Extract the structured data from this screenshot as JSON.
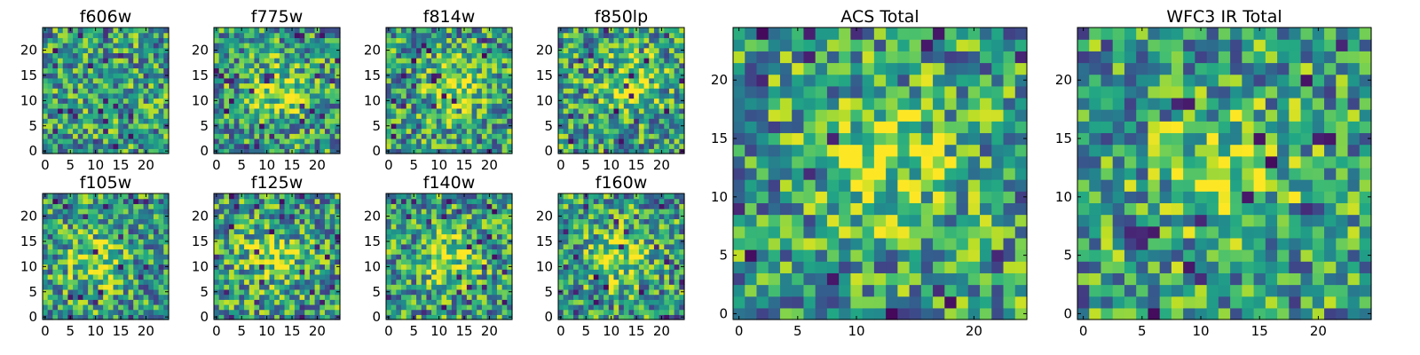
{
  "figure": {
    "panels": [
      {
        "title": "f606w"
      },
      {
        "title": "f775w"
      },
      {
        "title": "f814w"
      },
      {
        "title": "f850lp"
      },
      {
        "title": "f105w"
      },
      {
        "title": "f125w"
      },
      {
        "title": "f140w"
      },
      {
        "title": "f160w"
      },
      {
        "title": "ACS Total"
      },
      {
        "title": "WFC3 IR Total"
      }
    ]
  },
  "chart_data": [
    {
      "type": "heatmap",
      "title": "f606w",
      "grid_size": [
        25,
        25
      ],
      "xlim": [
        0,
        24
      ],
      "ylim": [
        0,
        24
      ],
      "xticks": [
        0,
        5,
        10,
        15,
        20
      ],
      "yticks": [
        0,
        5,
        10,
        15,
        20
      ],
      "colormap": "viridis",
      "blob": null,
      "seed": 11
    },
    {
      "type": "heatmap",
      "title": "f775w",
      "grid_size": [
        25,
        25
      ],
      "xlim": [
        0,
        24
      ],
      "ylim": [
        0,
        24
      ],
      "xticks": [
        0,
        5,
        10,
        15,
        20
      ],
      "yticks": [
        0,
        5,
        10,
        15,
        20
      ],
      "colormap": "viridis",
      "blob": [
        12,
        12
      ],
      "seed": 23
    },
    {
      "type": "heatmap",
      "title": "f814w",
      "grid_size": [
        25,
        25
      ],
      "xlim": [
        0,
        24
      ],
      "ylim": [
        0,
        24
      ],
      "xticks": [
        0,
        5,
        10,
        15,
        20
      ],
      "yticks": [
        0,
        5,
        10,
        15,
        20
      ],
      "colormap": "viridis",
      "blob": [
        13,
        13
      ],
      "seed": 37
    },
    {
      "type": "heatmap",
      "title": "f850lp",
      "grid_size": [
        25,
        25
      ],
      "xlim": [
        0,
        24
      ],
      "ylim": [
        0,
        24
      ],
      "xticks": [
        0,
        5,
        10,
        15,
        20
      ],
      "yticks": [
        0,
        5,
        10,
        15,
        20
      ],
      "colormap": "viridis",
      "blob": [
        14,
        14
      ],
      "seed": 41
    },
    {
      "type": "heatmap",
      "title": "f105w",
      "grid_size": [
        25,
        25
      ],
      "xlim": [
        0,
        24
      ],
      "ylim": [
        0,
        24
      ],
      "xticks": [
        0,
        5,
        10,
        15,
        20
      ],
      "yticks": [
        0,
        5,
        10,
        15,
        20
      ],
      "colormap": "viridis",
      "blob": [
        10,
        11
      ],
      "seed": 53
    },
    {
      "type": "heatmap",
      "title": "f125w",
      "grid_size": [
        25,
        25
      ],
      "xlim": [
        0,
        24
      ],
      "ylim": [
        0,
        24
      ],
      "xticks": [
        0,
        5,
        10,
        15,
        20
      ],
      "yticks": [
        0,
        5,
        10,
        15,
        20
      ],
      "colormap": "viridis",
      "blob": [
        11,
        12
      ],
      "seed": 67
    },
    {
      "type": "heatmap",
      "title": "f140w",
      "grid_size": [
        25,
        25
      ],
      "xlim": [
        0,
        24
      ],
      "ylim": [
        0,
        24
      ],
      "xticks": [
        0,
        5,
        10,
        15,
        20
      ],
      "yticks": [
        0,
        5,
        10,
        15,
        20
      ],
      "colormap": "viridis",
      "blob": [
        12,
        12
      ],
      "seed": 71
    },
    {
      "type": "heatmap",
      "title": "f160w",
      "grid_size": [
        25,
        25
      ],
      "xlim": [
        0,
        24
      ],
      "ylim": [
        0,
        24
      ],
      "xticks": [
        0,
        5,
        10,
        15,
        20
      ],
      "yticks": [
        0,
        5,
        10,
        15,
        20
      ],
      "colormap": "viridis",
      "blob": [
        12,
        12
      ],
      "seed": 83
    },
    {
      "type": "heatmap",
      "title": "ACS Total",
      "grid_size": [
        25,
        25
      ],
      "xlim": [
        0,
        24
      ],
      "ylim": [
        0,
        24
      ],
      "xticks": [
        0,
        5,
        10,
        20
      ],
      "yticks": [
        0,
        5,
        10,
        15,
        20
      ],
      "colormap": "viridis",
      "blob": [
        13,
        13
      ],
      "seed": 97
    },
    {
      "type": "heatmap",
      "title": "WFC3 IR Total",
      "grid_size": [
        25,
        25
      ],
      "xlim": [
        0,
        24
      ],
      "ylim": [
        0,
        24
      ],
      "xticks": [
        0,
        5,
        10,
        15,
        20
      ],
      "yticks": [
        0,
        5,
        10,
        15,
        20
      ],
      "colormap": "viridis",
      "blob": [
        12,
        12
      ],
      "seed": 101
    }
  ]
}
